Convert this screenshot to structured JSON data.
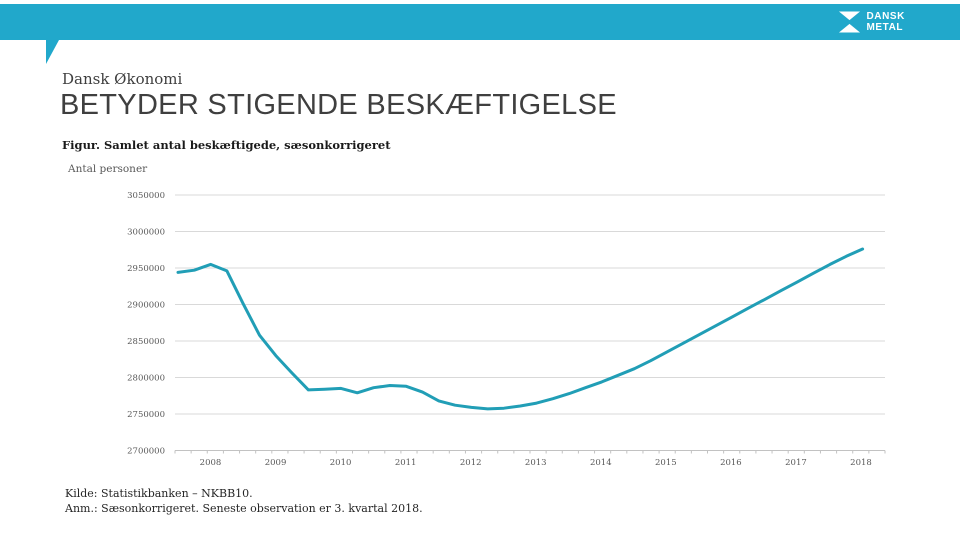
{
  "colors": {
    "accent": "#21A8CB",
    "grid": "#D9D9D9",
    "axis": "#C2C2C2",
    "text_dark": "#3F3F3F",
    "text_gray": "#595959",
    "text_black": "#1A1A1A"
  },
  "header": {
    "logo": {
      "icon": "dansk-metal-hourglass-icon",
      "line1": "DANSK",
      "line2": "METAL"
    }
  },
  "eyebrow": "Dansk Økonomi",
  "title": "BETYDER STIGENDE BESKÆFTIGELSE",
  "chart_data": {
    "type": "line",
    "title": "Figur. Samlet antal beskæftigede, sæsonkorrigeret",
    "ylabel": "Antal personer",
    "frequency": "quarterly",
    "x_start": "2008 K1",
    "x_end": "2018 K3",
    "x_year_labels": [
      "2008",
      "2009",
      "2010",
      "2011",
      "2012",
      "2013",
      "2014",
      "2015",
      "2016",
      "2017",
      "2018"
    ],
    "ytick_labels": [
      "3050000",
      "3000000",
      "2950000",
      "2900000",
      "2850000",
      "2800000",
      "2750000",
      "2700000"
    ],
    "ylim": [
      2700000,
      3050000
    ],
    "grid": true,
    "legend": false,
    "line_color": "#219EB6",
    "series": [
      {
        "name": "Samlet antal beskæftigede, sæsonkorrigeret",
        "values": [
          2944000,
          2947000,
          2955000,
          2946000,
          2901000,
          2858000,
          2830000,
          2806000,
          2783000,
          2784000,
          2785000,
          2779000,
          2786000,
          2789000,
          2788000,
          2780000,
          2768000,
          2762000,
          2759000,
          2757000,
          2758000,
          2761000,
          2765000,
          2771000,
          2778000,
          2786000,
          2794000,
          2803000,
          2812000,
          2823000,
          2835000,
          2847000,
          2859000,
          2871000,
          2883000,
          2895000,
          2907000,
          2919000,
          2931000,
          2943000,
          2955000,
          2966000,
          2976000
        ]
      }
    ]
  },
  "footer": {
    "line1": "Kilde: Statistikbanken – NKBB10.",
    "line2": "Anm.: Sæsonkorrigeret. Seneste observation er 3. kvartal 2018."
  }
}
